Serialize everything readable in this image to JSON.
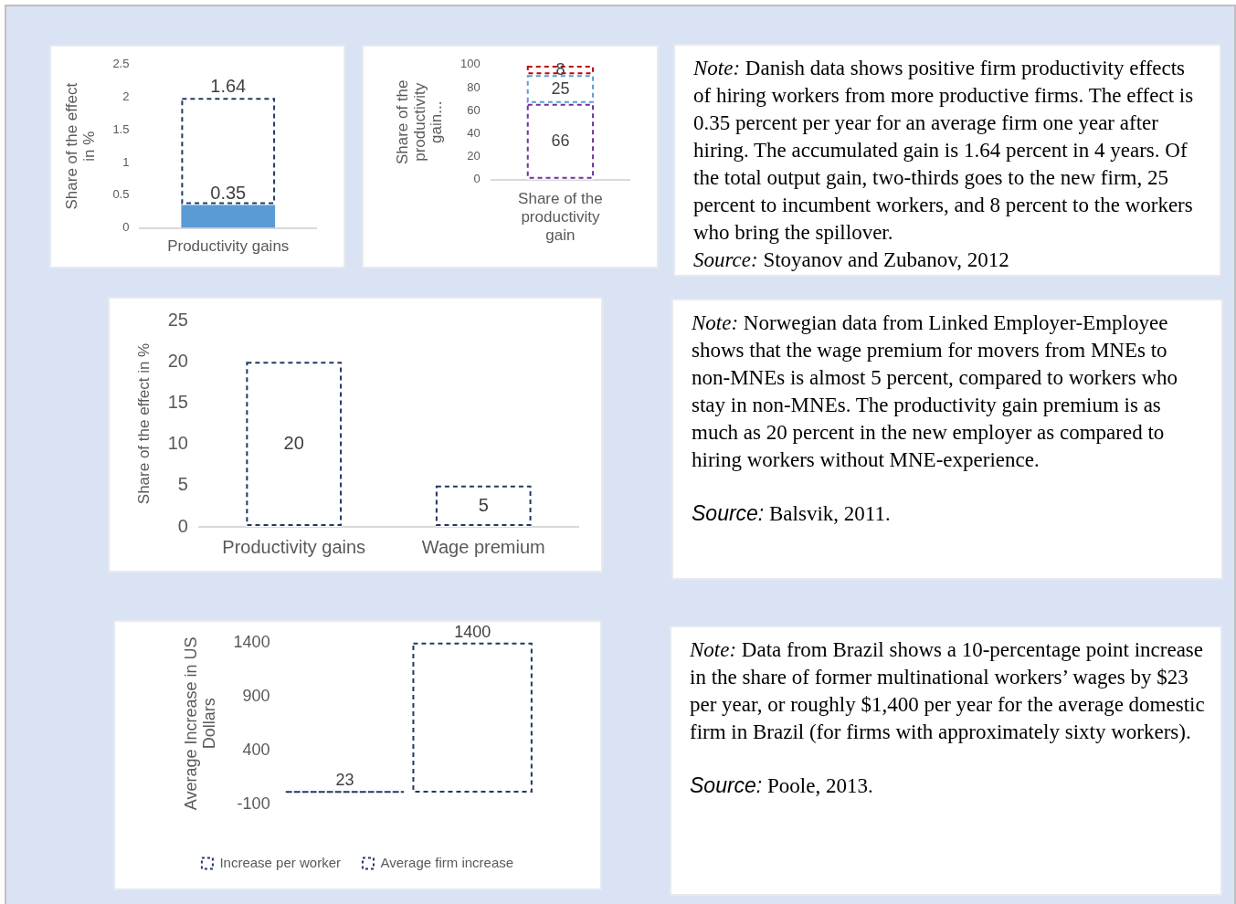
{
  "chart_data": [
    {
      "type": "bar",
      "stacked": true,
      "categories": [
        "Productivity gains"
      ],
      "ylabel": "Share of the effect in %",
      "ylim": [
        0,
        2.5
      ],
      "yticks": [
        0,
        0.5,
        1,
        1.5,
        2,
        2.5
      ],
      "grid": false,
      "data_labels": true,
      "series": [
        {
          "color": "#5b9bd5",
          "values": [
            0.35
          ]
        },
        {
          "color": "#1f3864",
          "line_style": "dashed",
          "values": [
            1.64
          ]
        }
      ]
    },
    {
      "type": "bar",
      "stacked": true,
      "categories": [
        "Share of the productivity gain"
      ],
      "ylabel": "Share of the productivity gain...",
      "ylim": [
        0,
        100
      ],
      "yticks": [
        0,
        20,
        40,
        60,
        80,
        100
      ],
      "grid": false,
      "data_labels": true,
      "series": [
        {
          "color": "#7030a0",
          "line_style": "dashed",
          "values": [
            66
          ]
        },
        {
          "color": "#5b9bd5",
          "line_style": "dashed",
          "values": [
            25
          ]
        },
        {
          "color": "#c00000",
          "line_style": "dashed",
          "values": [
            8
          ]
        }
      ]
    },
    {
      "type": "other",
      "annotations": [
        "Note: Danish data shows positive firm productivity effects of hiring workers from more productive firms. The effect is 0.35 percent per year for an average firm one year after hiring. The accumulated gain is 1.64 percent in 4 years. Of the total output gain, two-thirds goes to the new firm, 25 percent to incumbent workers, and 8 percent to the workers who bring the spillover.",
        "Source: Stoyanov and Zubanov, 2012"
      ]
    },
    {
      "type": "bar",
      "categories": [
        "Productivity gains",
        "Wage premium"
      ],
      "ylabel": "Share of the effect in %",
      "ylim": [
        0,
        25
      ],
      "yticks": [
        0,
        5,
        10,
        15,
        20,
        25
      ],
      "grid": false,
      "data_labels": true,
      "series": [
        {
          "color": "#1f3864",
          "line_style": "dashed",
          "values": [
            20,
            5
          ]
        }
      ]
    },
    {
      "type": "other",
      "annotations": [
        "Note: Norwegian data from Linked Employer-Employee shows that the wage premium for movers from MNEs to non-MNEs is almost 5 percent, compared to workers who stay in non-MNEs. The productivity gain premium is as much as 20 percent in the new employer as compared to hiring workers without MNE-experience.",
        "Source: Balsvik, 2011."
      ]
    },
    {
      "type": "bar",
      "categories": [
        null,
        null
      ],
      "ylabel": "Average Increase in US Dollars",
      "ylim": [
        -100,
        1400
      ],
      "yticks": [
        -100,
        400,
        900,
        1400
      ],
      "grid": false,
      "data_labels": true,
      "legend": "bottom",
      "series": [
        {
          "name": "Increase per worker",
          "color": "#1f3864",
          "line_style": "dashed",
          "values": [
            23,
            null
          ]
        },
        {
          "name": "Average firm increase",
          "color": "#1f3864",
          "line_style": "dashed",
          "values": [
            null,
            1400
          ]
        }
      ]
    },
    {
      "type": "other",
      "annotations": [
        "Note: Data from Brazil shows a 10-percentage point increase in the share of former multinational workers’ wages by $23 per year, or roughly $1,400 per year for the average domestic firm in Brazil (for firms with approximately sixty workers).",
        "Source: Poole, 2013."
      ]
    }
  ]
}
